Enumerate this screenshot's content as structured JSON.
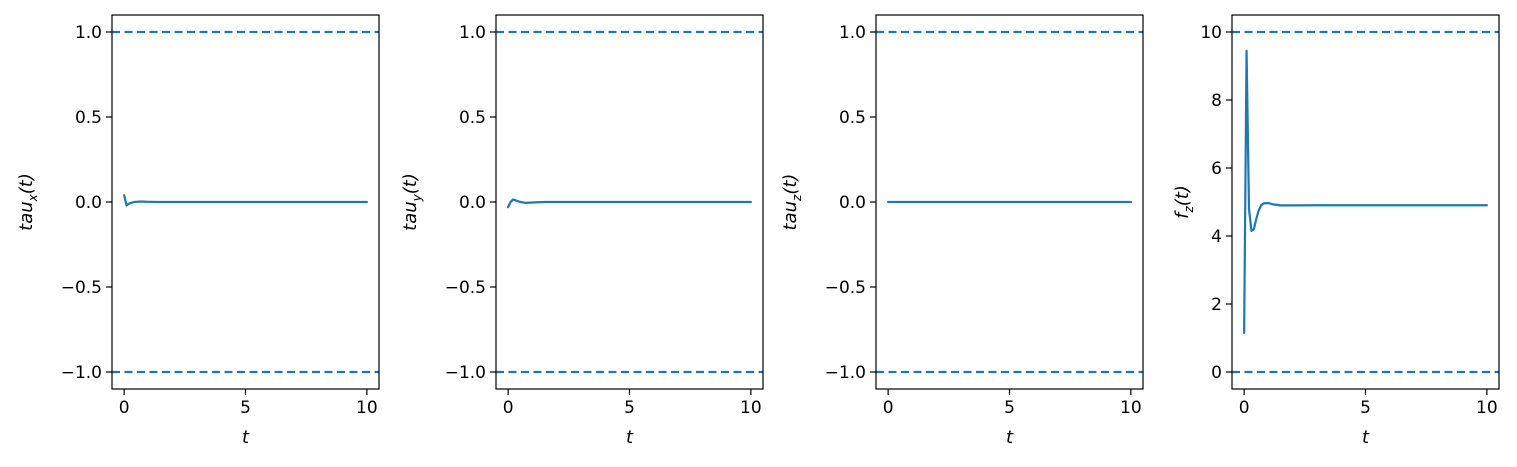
{
  "figure": {
    "background": "#ffffff",
    "line_color": "#1f77b4",
    "axes_color": "#000000"
  },
  "chart_data": [
    {
      "type": "line",
      "xlabel": "t",
      "ylabel": {
        "main": "tau",
        "sub": "x",
        "tail": "(t)"
      },
      "xlim": [
        -0.5,
        10.5
      ],
      "ylim": [
        -1.1,
        1.1
      ],
      "xticks": [
        0,
        5,
        10
      ],
      "xtick_labels": [
        "0",
        "5",
        "10"
      ],
      "yticks": [
        -1.0,
        -0.5,
        0.0,
        0.5,
        1.0
      ],
      "ytick_labels": [
        "−1.0",
        "−0.5",
        "0.0",
        "0.5",
        "1.0"
      ],
      "grid": false,
      "hlines": [
        {
          "y": 1.0,
          "style": "dashed"
        },
        {
          "y": -1.0,
          "style": "dashed"
        }
      ],
      "series": [
        {
          "x": [
            0,
            0.1,
            0.2,
            0.3,
            0.4,
            0.6,
            0.8,
            1.0,
            1.5,
            2,
            3,
            4,
            5,
            6,
            7,
            8,
            9,
            10
          ],
          "values": [
            0.04,
            -0.02,
            -0.01,
            -0.005,
            0.0,
            0.002,
            0.002,
            0.001,
            0.0,
            0.0,
            0.0,
            0.0,
            0.0,
            0.0,
            0.0,
            0.0,
            0.0,
            0.0
          ]
        }
      ]
    },
    {
      "type": "line",
      "xlabel": "t",
      "ylabel": {
        "main": "tau",
        "sub": "y",
        "tail": "(t)"
      },
      "xlim": [
        -0.5,
        10.5
      ],
      "ylim": [
        -1.1,
        1.1
      ],
      "xticks": [
        0,
        5,
        10
      ],
      "xtick_labels": [
        "0",
        "5",
        "10"
      ],
      "yticks": [
        -1.0,
        -0.5,
        0.0,
        0.5,
        1.0
      ],
      "ytick_labels": [
        "−1.0",
        "−0.5",
        "0.0",
        "0.5",
        "1.0"
      ],
      "grid": false,
      "hlines": [
        {
          "y": 1.0,
          "style": "dashed"
        },
        {
          "y": -1.0,
          "style": "dashed"
        }
      ],
      "series": [
        {
          "x": [
            0,
            0.1,
            0.2,
            0.3,
            0.5,
            0.7,
            1.0,
            1.5,
            2,
            3,
            4,
            5,
            6,
            7,
            8,
            9,
            10
          ],
          "values": [
            -0.03,
            0.0,
            0.015,
            0.01,
            0.0,
            -0.005,
            -0.003,
            0.0,
            0.0,
            0.0,
            0.0,
            0.0,
            0.0,
            0.0,
            0.0,
            0.0,
            0.0
          ]
        }
      ]
    },
    {
      "type": "line",
      "xlabel": "t",
      "ylabel": {
        "main": "tau",
        "sub": "z",
        "tail": "(t)"
      },
      "xlim": [
        -0.5,
        10.5
      ],
      "ylim": [
        -1.1,
        1.1
      ],
      "xticks": [
        0,
        5,
        10
      ],
      "xtick_labels": [
        "0",
        "5",
        "10"
      ],
      "yticks": [
        -1.0,
        -0.5,
        0.0,
        0.5,
        1.0
      ],
      "ytick_labels": [
        "−1.0",
        "−0.5",
        "0.0",
        "0.5",
        "1.0"
      ],
      "grid": false,
      "hlines": [
        {
          "y": 1.0,
          "style": "dashed"
        },
        {
          "y": -1.0,
          "style": "dashed"
        }
      ],
      "series": [
        {
          "x": [
            0,
            2,
            4,
            6,
            8,
            10
          ],
          "values": [
            0.0,
            0.0,
            0.0,
            0.0,
            0.0,
            0.0
          ]
        }
      ]
    },
    {
      "type": "line",
      "xlabel": "t",
      "ylabel": {
        "main": "f",
        "sub": "z",
        "tail": "(t)"
      },
      "xlim": [
        -0.5,
        10.5
      ],
      "ylim": [
        -0.5,
        10.5
      ],
      "xticks": [
        0,
        5,
        10
      ],
      "xtick_labels": [
        "0",
        "5",
        "10"
      ],
      "yticks": [
        0,
        2,
        4,
        6,
        8,
        10
      ],
      "ytick_labels": [
        "0",
        "2",
        "4",
        "6",
        "8",
        "10"
      ],
      "grid": false,
      "hlines": [
        {
          "y": 10,
          "style": "dashed"
        },
        {
          "y": 0,
          "style": "dashed"
        }
      ],
      "series": [
        {
          "x": [
            0,
            0.1,
            0.2,
            0.3,
            0.4,
            0.5,
            0.6,
            0.7,
            0.8,
            1.0,
            1.2,
            1.5,
            2,
            3,
            4,
            5,
            6,
            7,
            8,
            9,
            10
          ],
          "values": [
            1.15,
            9.45,
            4.8,
            4.15,
            4.2,
            4.5,
            4.75,
            4.9,
            4.96,
            4.97,
            4.93,
            4.9,
            4.9,
            4.905,
            4.905,
            4.905,
            4.905,
            4.905,
            4.905,
            4.905,
            4.905
          ]
        }
      ]
    }
  ]
}
